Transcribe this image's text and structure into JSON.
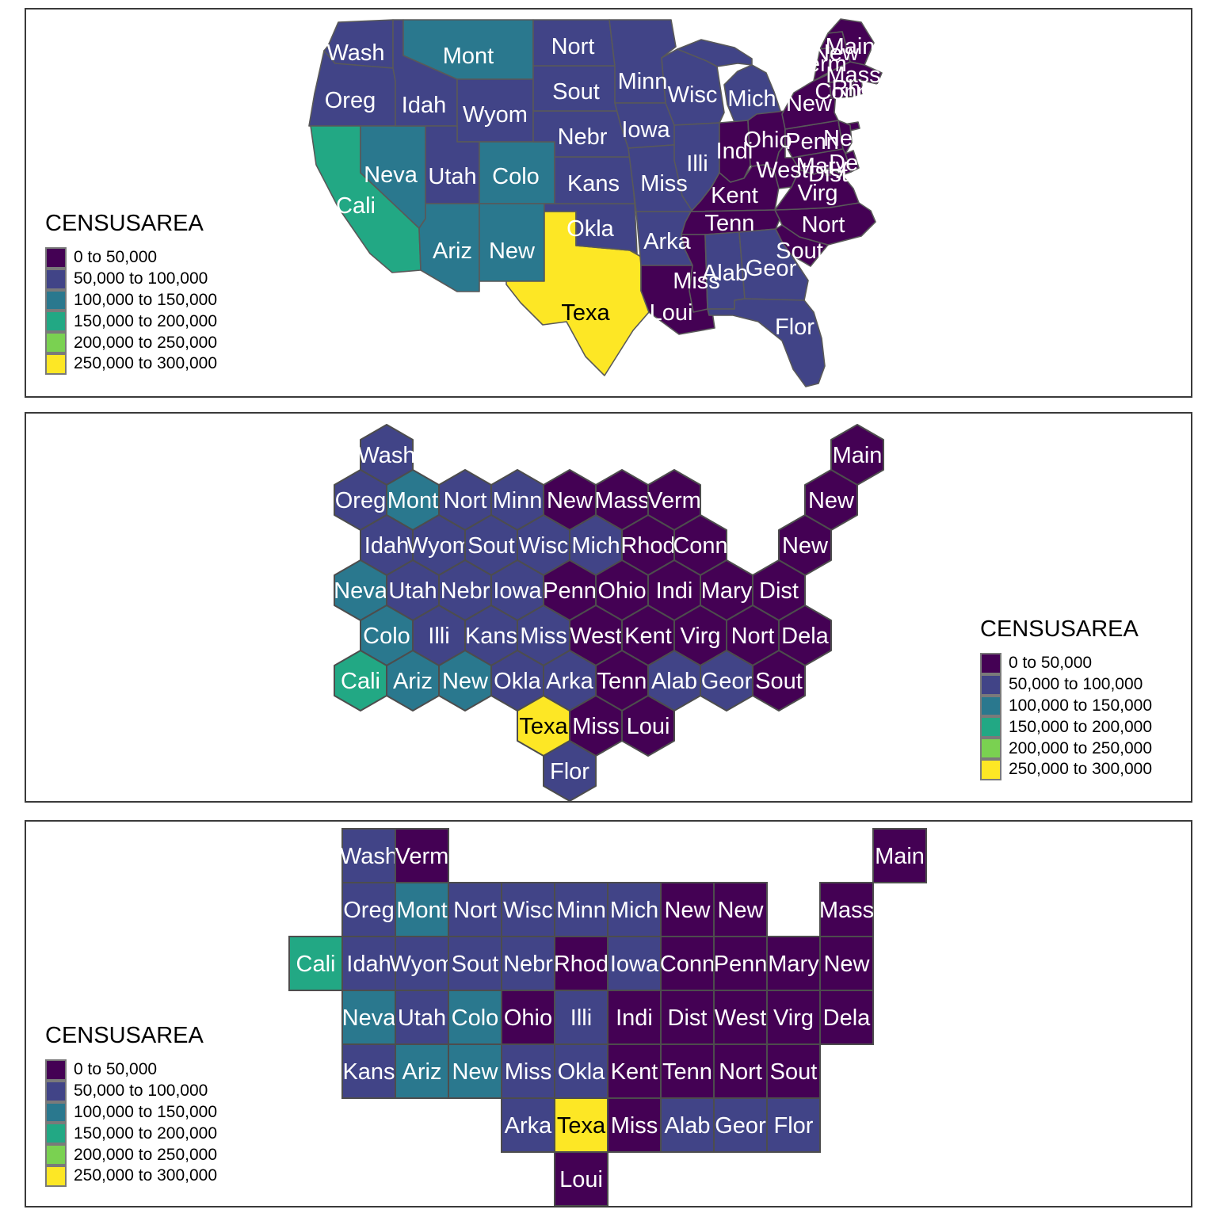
{
  "legend": {
    "title": "CENSUSAREA",
    "bins": [
      {
        "label": "0 to 50,000",
        "color": "#440154"
      },
      {
        "label": "50,000 to 100,000",
        "color": "#414487"
      },
      {
        "label": "100,000 to 150,000",
        "color": "#2a788e"
      },
      {
        "label": "150,000 to 200,000",
        "color": "#22a884"
      },
      {
        "label": "200,000 to 250,000",
        "color": "#7ad151"
      },
      {
        "label": "250,000 to 300,000",
        "color": "#fde725"
      }
    ]
  },
  "chart_data": [
    {
      "type": "choropleth_map",
      "variable": "CENSUSAREA",
      "legend_position": "left",
      "regions": [
        {
          "id": "wa",
          "label": "Wash",
          "bin": 1
        },
        {
          "id": "or",
          "label": "Oreg",
          "bin": 1
        },
        {
          "id": "ca",
          "label": "Cali",
          "bin": 3
        },
        {
          "id": "nv",
          "label": "Neva",
          "bin": 2
        },
        {
          "id": "id",
          "label": "Idah",
          "bin": 1
        },
        {
          "id": "mt",
          "label": "Mont",
          "bin": 2
        },
        {
          "id": "wy",
          "label": "Wyom",
          "bin": 1
        },
        {
          "id": "ut",
          "label": "Utah",
          "bin": 1
        },
        {
          "id": "co",
          "label": "Colo",
          "bin": 2
        },
        {
          "id": "az",
          "label": "Ariz",
          "bin": 2
        },
        {
          "id": "nm",
          "label": "New",
          "bin": 2
        },
        {
          "id": "tx",
          "label": "Texa",
          "bin": 5
        },
        {
          "id": "ok",
          "label": "Okla",
          "bin": 1
        },
        {
          "id": "ks",
          "label": "Kans",
          "bin": 1
        },
        {
          "id": "ne",
          "label": "Nebr",
          "bin": 1
        },
        {
          "id": "sd",
          "label": "Sout",
          "bin": 1
        },
        {
          "id": "nd",
          "label": "Nort",
          "bin": 1
        },
        {
          "id": "mn",
          "label": "Minn",
          "bin": 1
        },
        {
          "id": "ia",
          "label": "Iowa",
          "bin": 1
        },
        {
          "id": "mo",
          "label": "Miss",
          "bin": 1
        },
        {
          "id": "ar",
          "label": "Arka",
          "bin": 1
        },
        {
          "id": "la",
          "label": "Loui",
          "bin": 0
        },
        {
          "id": "wi",
          "label": "Wisc",
          "bin": 1
        },
        {
          "id": "il",
          "label": "Illi",
          "bin": 1
        },
        {
          "id": "mi",
          "label": "Mich",
          "bin": 1
        },
        {
          "id": "in",
          "label": "Indi",
          "bin": 0
        },
        {
          "id": "oh",
          "label": "Ohio",
          "bin": 0
        },
        {
          "id": "ky",
          "label": "Kent",
          "bin": 0
        },
        {
          "id": "tn",
          "label": "Tenn",
          "bin": 0
        },
        {
          "id": "ms",
          "label": "Miss",
          "bin": 0
        },
        {
          "id": "al",
          "label": "Alab",
          "bin": 1
        },
        {
          "id": "ga",
          "label": "Geor",
          "bin": 1
        },
        {
          "id": "fl",
          "label": "Flor",
          "bin": 1
        },
        {
          "id": "sc",
          "label": "Sout",
          "bin": 0
        },
        {
          "id": "nc",
          "label": "Nort",
          "bin": 0
        },
        {
          "id": "va",
          "label": "Virg",
          "bin": 0
        },
        {
          "id": "wv",
          "label": "West",
          "bin": 0
        },
        {
          "id": "pa",
          "label": "Penn",
          "bin": 0
        },
        {
          "id": "ny",
          "label": "New",
          "bin": 0
        },
        {
          "id": "me",
          "label": "Main",
          "bin": 0
        },
        {
          "id": "vt",
          "label": "Verm",
          "bin": 0
        },
        {
          "id": "nh",
          "label": "New",
          "bin": 0
        },
        {
          "id": "ma",
          "label": "Mass",
          "bin": 0
        },
        {
          "id": "ct",
          "label": "Conn",
          "bin": 0
        },
        {
          "id": "ri",
          "label": "Rhod",
          "bin": 0
        },
        {
          "id": "nj",
          "label": "New",
          "bin": 0
        },
        {
          "id": "md",
          "label": "Mary",
          "bin": 0
        },
        {
          "id": "de",
          "label": "Dela",
          "bin": 0
        },
        {
          "id": "dc",
          "label": "Dist",
          "bin": 0
        }
      ]
    },
    {
      "type": "hex_tile_map",
      "variable": "CENSUSAREA",
      "legend_position": "right",
      "tiles": [
        {
          "label": "Wash",
          "row": 0,
          "col": 0,
          "offset": true,
          "bin": 1
        },
        {
          "label": "Main",
          "row": 0,
          "col": 9,
          "offset": true,
          "bin": 0
        },
        {
          "label": "Oreg",
          "row": 1,
          "col": 0,
          "offset": false,
          "bin": 1
        },
        {
          "label": "Mont",
          "row": 1,
          "col": 1,
          "offset": false,
          "bin": 2
        },
        {
          "label": "Nort",
          "row": 1,
          "col": 2,
          "offset": false,
          "bin": 1
        },
        {
          "label": "Minn",
          "row": 1,
          "col": 3,
          "offset": false,
          "bin": 1
        },
        {
          "label": "New",
          "row": 1,
          "col": 4,
          "offset": false,
          "bin": 0
        },
        {
          "label": "Mass",
          "row": 1,
          "col": 5,
          "offset": false,
          "bin": 0
        },
        {
          "label": "Verm",
          "row": 1,
          "col": 6,
          "offset": false,
          "bin": 0
        },
        {
          "label": "New",
          "row": 1,
          "col": 9,
          "offset": false,
          "bin": 0
        },
        {
          "label": "Idah",
          "row": 2,
          "col": 0,
          "offset": true,
          "bin": 1
        },
        {
          "label": "Wyom",
          "row": 2,
          "col": 1,
          "offset": true,
          "bin": 1
        },
        {
          "label": "Sout",
          "row": 2,
          "col": 2,
          "offset": true,
          "bin": 1
        },
        {
          "label": "Wisc",
          "row": 2,
          "col": 3,
          "offset": true,
          "bin": 1
        },
        {
          "label": "Mich",
          "row": 2,
          "col": 4,
          "offset": true,
          "bin": 1
        },
        {
          "label": "Rhod",
          "row": 2,
          "col": 5,
          "offset": true,
          "bin": 0
        },
        {
          "label": "Conn",
          "row": 2,
          "col": 6,
          "offset": true,
          "bin": 0
        },
        {
          "label": "New",
          "row": 2,
          "col": 8,
          "offset": true,
          "bin": 0
        },
        {
          "label": "Neva",
          "row": 3,
          "col": 0,
          "offset": false,
          "bin": 2
        },
        {
          "label": "Utah",
          "row": 3,
          "col": 1,
          "offset": false,
          "bin": 1
        },
        {
          "label": "Nebr",
          "row": 3,
          "col": 2,
          "offset": false,
          "bin": 1
        },
        {
          "label": "Iowa",
          "row": 3,
          "col": 3,
          "offset": false,
          "bin": 1
        },
        {
          "label": "Penn",
          "row": 3,
          "col": 4,
          "offset": false,
          "bin": 0
        },
        {
          "label": "Ohio",
          "row": 3,
          "col": 5,
          "offset": false,
          "bin": 0
        },
        {
          "label": "Indi",
          "row": 3,
          "col": 6,
          "offset": false,
          "bin": 0
        },
        {
          "label": "Mary",
          "row": 3,
          "col": 7,
          "offset": false,
          "bin": 0
        },
        {
          "label": "Dist",
          "row": 3,
          "col": 8,
          "offset": false,
          "bin": 0
        },
        {
          "label": "Colo",
          "row": 4,
          "col": 0,
          "offset": true,
          "bin": 2
        },
        {
          "label": "Illi",
          "row": 4,
          "col": 1,
          "offset": true,
          "bin": 1
        },
        {
          "label": "Kans",
          "row": 4,
          "col": 2,
          "offset": true,
          "bin": 1
        },
        {
          "label": "Miss",
          "row": 4,
          "col": 3,
          "offset": true,
          "bin": 1
        },
        {
          "label": "West",
          "row": 4,
          "col": 4,
          "offset": true,
          "bin": 0
        },
        {
          "label": "Kent",
          "row": 4,
          "col": 5,
          "offset": true,
          "bin": 0
        },
        {
          "label": "Virg",
          "row": 4,
          "col": 6,
          "offset": true,
          "bin": 0
        },
        {
          "label": "Nort",
          "row": 4,
          "col": 7,
          "offset": true,
          "bin": 0
        },
        {
          "label": "Dela",
          "row": 4,
          "col": 8,
          "offset": true,
          "bin": 0
        },
        {
          "label": "Cali",
          "row": 5,
          "col": 0,
          "offset": false,
          "bin": 3
        },
        {
          "label": "Ariz",
          "row": 5,
          "col": 1,
          "offset": false,
          "bin": 2
        },
        {
          "label": "New",
          "row": 5,
          "col": 2,
          "offset": false,
          "bin": 2
        },
        {
          "label": "Okla",
          "row": 5,
          "col": 3,
          "offset": false,
          "bin": 1
        },
        {
          "label": "Arka",
          "row": 5,
          "col": 4,
          "offset": false,
          "bin": 1
        },
        {
          "label": "Tenn",
          "row": 5,
          "col": 5,
          "offset": false,
          "bin": 0
        },
        {
          "label": "Alab",
          "row": 5,
          "col": 6,
          "offset": false,
          "bin": 1
        },
        {
          "label": "Geor",
          "row": 5,
          "col": 7,
          "offset": false,
          "bin": 1
        },
        {
          "label": "Sout",
          "row": 5,
          "col": 8,
          "offset": false,
          "bin": 0
        },
        {
          "label": "Texa",
          "row": 6,
          "col": 3,
          "offset": true,
          "bin": 5
        },
        {
          "label": "Miss",
          "row": 6,
          "col": 4,
          "offset": true,
          "bin": 0
        },
        {
          "label": "Loui",
          "row": 6,
          "col": 5,
          "offset": true,
          "bin": 0
        },
        {
          "label": "Flor",
          "row": 7,
          "col": 4,
          "offset": false,
          "bin": 1
        }
      ]
    },
    {
      "type": "square_tile_map",
      "variable": "CENSUSAREA",
      "legend_position": "left",
      "tiles": [
        {
          "label": "Wash",
          "row": 0,
          "col": 1,
          "bin": 1
        },
        {
          "label": "Verm",
          "row": 0,
          "col": 2,
          "bin": 0
        },
        {
          "label": "Main",
          "row": 0,
          "col": 11,
          "bin": 0
        },
        {
          "label": "Oreg",
          "row": 1,
          "col": 1,
          "bin": 1
        },
        {
          "label": "Mont",
          "row": 1,
          "col": 2,
          "bin": 2
        },
        {
          "label": "Nort",
          "row": 1,
          "col": 3,
          "bin": 1
        },
        {
          "label": "Wisc",
          "row": 1,
          "col": 4,
          "bin": 1
        },
        {
          "label": "Minn",
          "row": 1,
          "col": 5,
          "bin": 1
        },
        {
          "label": "Mich",
          "row": 1,
          "col": 6,
          "bin": 1
        },
        {
          "label": "New",
          "row": 1,
          "col": 7,
          "bin": 0
        },
        {
          "label": "New",
          "row": 1,
          "col": 8,
          "bin": 0
        },
        {
          "label": "Mass",
          "row": 1,
          "col": 10,
          "bin": 0
        },
        {
          "label": "Cali",
          "row": 2,
          "col": 0,
          "bin": 3
        },
        {
          "label": "Idah",
          "row": 2,
          "col": 1,
          "bin": 1
        },
        {
          "label": "Wyom",
          "row": 2,
          "col": 2,
          "bin": 1
        },
        {
          "label": "Sout",
          "row": 2,
          "col": 3,
          "bin": 1
        },
        {
          "label": "Nebr",
          "row": 2,
          "col": 4,
          "bin": 1
        },
        {
          "label": "Rhod",
          "row": 2,
          "col": 5,
          "bin": 0
        },
        {
          "label": "Iowa",
          "row": 2,
          "col": 6,
          "bin": 1
        },
        {
          "label": "Conn",
          "row": 2,
          "col": 7,
          "bin": 0
        },
        {
          "label": "Penn",
          "row": 2,
          "col": 8,
          "bin": 0
        },
        {
          "label": "Mary",
          "row": 2,
          "col": 9,
          "bin": 0
        },
        {
          "label": "New",
          "row": 2,
          "col": 10,
          "bin": 0
        },
        {
          "label": "Neva",
          "row": 3,
          "col": 1,
          "bin": 2
        },
        {
          "label": "Utah",
          "row": 3,
          "col": 2,
          "bin": 1
        },
        {
          "label": "Colo",
          "row": 3,
          "col": 3,
          "bin": 2
        },
        {
          "label": "Ohio",
          "row": 3,
          "col": 4,
          "bin": 0
        },
        {
          "label": "Illi",
          "row": 3,
          "col": 5,
          "bin": 1
        },
        {
          "label": "Indi",
          "row": 3,
          "col": 6,
          "bin": 0
        },
        {
          "label": "Dist",
          "row": 3,
          "col": 7,
          "bin": 0
        },
        {
          "label": "West",
          "row": 3,
          "col": 8,
          "bin": 0
        },
        {
          "label": "Virg",
          "row": 3,
          "col": 9,
          "bin": 0
        },
        {
          "label": "Dela",
          "row": 3,
          "col": 10,
          "bin": 0
        },
        {
          "label": "Kans",
          "row": 4,
          "col": 1,
          "bin": 1
        },
        {
          "label": "Ariz",
          "row": 4,
          "col": 2,
          "bin": 2
        },
        {
          "label": "New",
          "row": 4,
          "col": 3,
          "bin": 2
        },
        {
          "label": "Miss",
          "row": 4,
          "col": 4,
          "bin": 1
        },
        {
          "label": "Okla",
          "row": 4,
          "col": 5,
          "bin": 1
        },
        {
          "label": "Kent",
          "row": 4,
          "col": 6,
          "bin": 0
        },
        {
          "label": "Tenn",
          "row": 4,
          "col": 7,
          "bin": 0
        },
        {
          "label": "Nort",
          "row": 4,
          "col": 8,
          "bin": 0
        },
        {
          "label": "Sout",
          "row": 4,
          "col": 9,
          "bin": 0
        },
        {
          "label": "Arka",
          "row": 5,
          "col": 4,
          "bin": 1
        },
        {
          "label": "Texa",
          "row": 5,
          "col": 5,
          "bin": 5
        },
        {
          "label": "Miss",
          "row": 5,
          "col": 6,
          "bin": 0
        },
        {
          "label": "Alab",
          "row": 5,
          "col": 7,
          "bin": 1
        },
        {
          "label": "Geor",
          "row": 5,
          "col": 8,
          "bin": 1
        },
        {
          "label": "Flor",
          "row": 5,
          "col": 9,
          "bin": 1
        },
        {
          "label": "Loui",
          "row": 6,
          "col": 5,
          "bin": 0
        }
      ]
    }
  ]
}
